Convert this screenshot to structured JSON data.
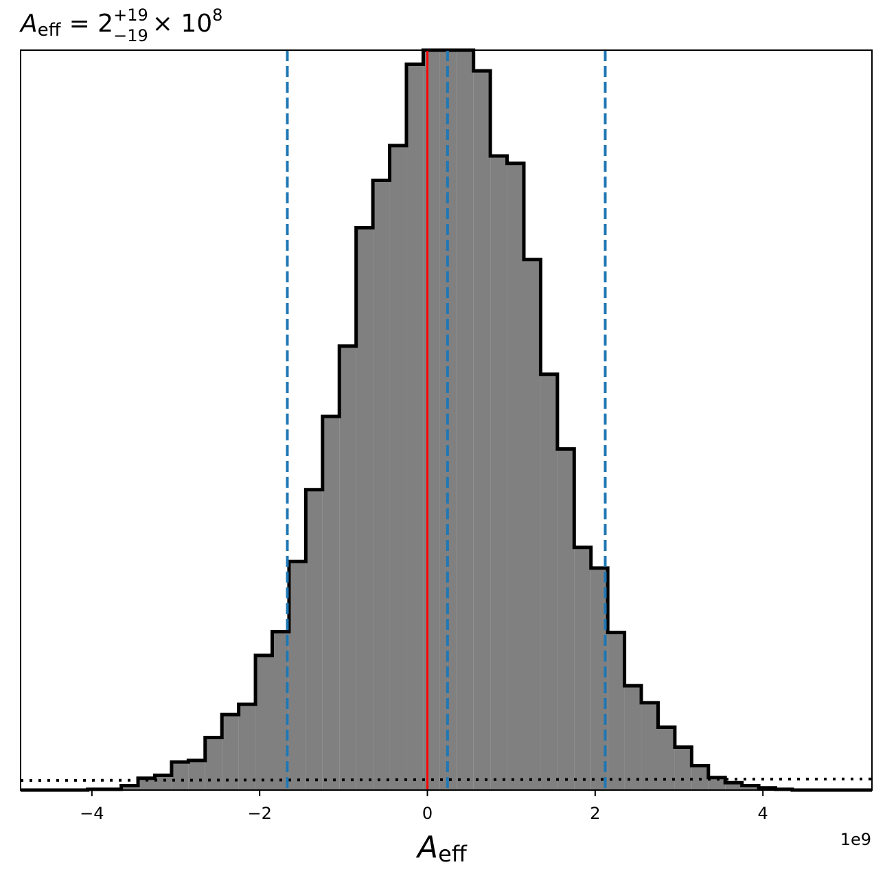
{
  "chart_data": {
    "type": "histogram",
    "title": {
      "symbol": "A",
      "symbol_sub": "eff",
      "equals": "= 2",
      "upper": "+19",
      "lower": "−19",
      "times": "× 10",
      "exponent": "8"
    },
    "xlabel": {
      "symbol": "A",
      "sub": "eff"
    },
    "x_offset_label": "1e9",
    "xlim": [
      -4.85,
      5.3
    ],
    "ylim": [
      0,
      1.0
    ],
    "x_scale": 1000000000.0,
    "xticks": [
      {
        "value": -4,
        "label": "−4"
      },
      {
        "value": -2,
        "label": "−2"
      },
      {
        "value": 0,
        "label": "0"
      },
      {
        "value": 2,
        "label": "2"
      },
      {
        "value": 4,
        "label": "4"
      }
    ],
    "bin_edges": [
      -4.05,
      -3.85,
      -3.65,
      -3.45,
      -3.25,
      -3.05,
      -2.85,
      -2.65,
      -2.45,
      -2.25,
      -2.05,
      -1.85,
      -1.65,
      -1.45,
      -1.25,
      -1.05,
      -0.85,
      -0.65,
      -0.45,
      -0.25,
      -0.05,
      0.15,
      0.35,
      0.55,
      0.75,
      0.95,
      1.15,
      1.35,
      1.55,
      1.75,
      1.95,
      2.15,
      2.35,
      2.55,
      2.75,
      2.95,
      3.15,
      3.35,
      3.55,
      3.75,
      3.95,
      4.15,
      4.35
    ],
    "counts": [
      0.001,
      0.001,
      0.006,
      0.016,
      0.02,
      0.038,
      0.04,
      0.071,
      0.102,
      0.116,
      0.182,
      0.214,
      0.309,
      0.406,
      0.505,
      0.6,
      0.76,
      0.824,
      0.871,
      0.981,
      1.0,
      1.0,
      1.0,
      0.972,
      0.857,
      0.847,
      0.717,
      0.562,
      0.461,
      0.328,
      0.3,
      0.213,
      0.141,
      0.118,
      0.085,
      0.058,
      0.033,
      0.017,
      0.01,
      0.006,
      0.003,
      0.001
    ],
    "fill_color": "#808080",
    "edge_color": "#000000",
    "median_line": {
      "x": 0.24,
      "color": "#1f77b4",
      "style": "dashed"
    },
    "interval_lines": [
      {
        "x": -1.67,
        "color": "#1f77b4",
        "style": "dashed"
      },
      {
        "x": 2.12,
        "color": "#1f77b4",
        "style": "dashed"
      }
    ],
    "truth_line": {
      "x": 0.0,
      "color": "#ff0000",
      "style": "solid"
    },
    "prior_line": {
      "x": [
        -4.85,
        5.3
      ],
      "y": [
        0.013,
        0.015
      ],
      "color": "#000000",
      "style": "dotted"
    },
    "grid": false,
    "yticks_visible": false
  }
}
